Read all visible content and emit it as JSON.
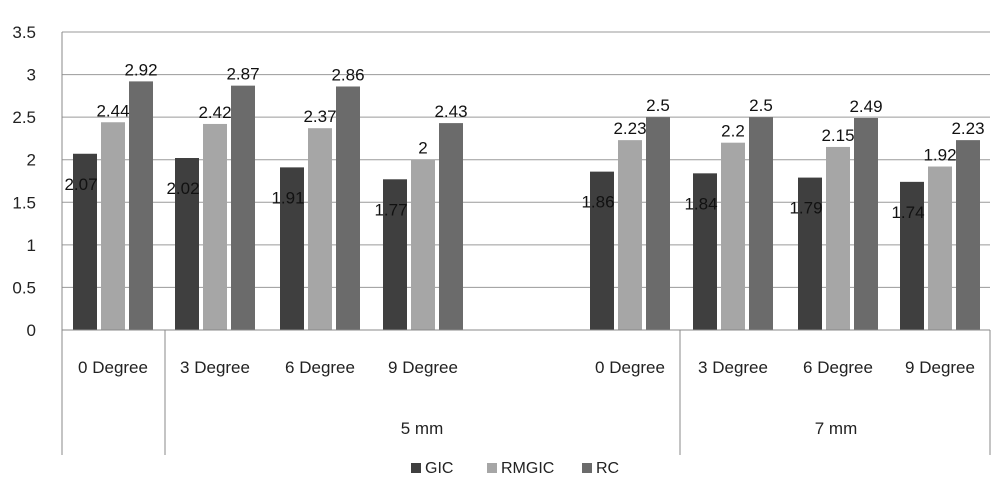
{
  "chart_data": {
    "type": "bar",
    "title": "",
    "xlabel": "",
    "ylabel": "",
    "ylim": [
      0,
      3.5
    ],
    "yticks": [
      "0",
      "0.5",
      "1",
      "1.5",
      "2",
      "2.5",
      "3",
      "3.5"
    ],
    "grid": true,
    "legend_position": "bottom",
    "categories": [
      "0 Degree",
      "3 Degree",
      "6 Degree",
      "9 Degree",
      "0 Degree",
      "3 Degree",
      "6 Degree",
      "9 Degree"
    ],
    "groups": [
      "5 mm",
      "7 mm"
    ],
    "series": [
      {
        "name": "GIC",
        "color": "#3f3f3f",
        "values": [
          2.07,
          2.02,
          1.91,
          1.77,
          1.86,
          1.84,
          1.79,
          1.74
        ],
        "labels": [
          "2.07",
          "2.02",
          "1.91",
          "1.77",
          "1.86",
          "1.84",
          "1.79",
          "1.74"
        ]
      },
      {
        "name": "RMGIC",
        "color": "#a6a6a6",
        "values": [
          2.44,
          2.42,
          2.37,
          2.0,
          2.23,
          2.2,
          2.15,
          1.92
        ],
        "labels": [
          "2.44",
          "2.42",
          "2.37",
          "2",
          "2.23",
          "2.2",
          "2.15",
          "1.92"
        ]
      },
      {
        "name": "RC",
        "color": "#6b6b6b",
        "values": [
          2.92,
          2.87,
          2.86,
          2.43,
          2.5,
          2.5,
          2.49,
          2.23
        ],
        "labels": [
          "2.92",
          "2.87",
          "2.86",
          "2.43",
          "2.5",
          "2.5",
          "2.49",
          "2.23"
        ]
      }
    ]
  }
}
